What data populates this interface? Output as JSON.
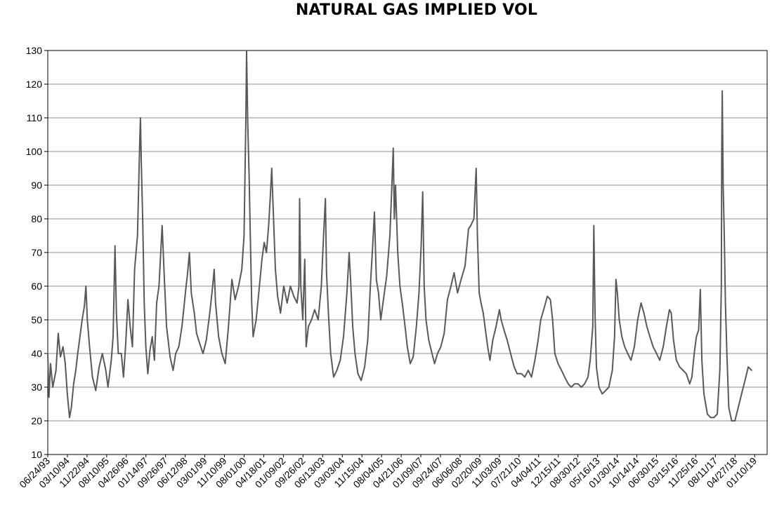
{
  "chart_data": {
    "type": "line",
    "title": "NATURAL GAS IMPLIED VOL",
    "xlabel": "",
    "ylabel": "",
    "ylim": [
      10,
      130
    ],
    "yticks": [
      10,
      20,
      30,
      40,
      50,
      60,
      70,
      80,
      90,
      100,
      110,
      120,
      130
    ],
    "xlim": [
      "1993-06-24",
      "2020-08-01"
    ],
    "x_tick_labels": [
      "06/24/93",
      "03/10/94",
      "11/22/94",
      "08/10/95",
      "04/26/96",
      "01/14/97",
      "09/26/97",
      "06/12/98",
      "03/01/99",
      "11/10/99",
      "08/01/00",
      "04/18/01",
      "01/09/02",
      "09/26/02",
      "06/13/03",
      "03/03/04",
      "11/15/04",
      "08/04/05",
      "04/21/06",
      "01/09/07",
      "09/24/07",
      "06/06/08",
      "02/20/09",
      "11/03/09",
      "07/21/10",
      "04/04/11",
      "12/15/11",
      "08/30/12",
      "05/16/13",
      "01/30/14",
      "10/14/14",
      "06/30/15",
      "03/15/16",
      "11/25/16",
      "08/11/17",
      "04/27/18",
      "01/10/19"
    ],
    "grid": "horizontal",
    "legend": "none",
    "line_color": "#595959",
    "series": [
      {
        "values": [
          [
            "1993-06-24",
            40
          ],
          [
            "1993-07-10",
            27
          ],
          [
            "1993-08-01",
            37
          ],
          [
            "1993-09-01",
            30
          ],
          [
            "1993-10-15",
            35
          ],
          [
            "1993-11-15",
            46
          ],
          [
            "1993-12-15",
            39
          ],
          [
            "1994-01-20",
            42
          ],
          [
            "1994-02-20",
            37
          ],
          [
            "1994-03-20",
            28
          ],
          [
            "1994-04-20",
            21
          ],
          [
            "1994-05-15",
            24
          ],
          [
            "1994-06-15",
            31
          ],
          [
            "1994-07-15",
            35
          ],
          [
            "1994-08-10",
            40
          ],
          [
            "1994-09-10",
            45
          ],
          [
            "1994-10-10",
            50
          ],
          [
            "1994-11-10",
            54
          ],
          [
            "1994-12-01",
            60
          ],
          [
            "1994-12-20",
            50
          ],
          [
            "1995-01-20",
            42
          ],
          [
            "1995-03-01",
            33
          ],
          [
            "1995-04-15",
            29
          ],
          [
            "1995-06-01",
            36
          ],
          [
            "1995-07-15",
            40
          ],
          [
            "1995-09-01",
            35
          ],
          [
            "1995-10-01",
            30
          ],
          [
            "1995-11-15",
            38
          ],
          [
            "1995-12-10",
            45
          ],
          [
            "1996-01-05",
            72
          ],
          [
            "1996-01-25",
            52
          ],
          [
            "1996-02-20",
            40
          ],
          [
            "1996-04-01",
            40
          ],
          [
            "1996-05-01",
            33
          ],
          [
            "1996-06-01",
            43
          ],
          [
            "1996-07-01",
            56
          ],
          [
            "1996-08-01",
            48
          ],
          [
            "1996-09-01",
            42
          ],
          [
            "1996-10-01",
            65
          ],
          [
            "1996-11-10",
            75
          ],
          [
            "1996-12-10",
            102
          ],
          [
            "1996-12-20",
            110
          ],
          [
            "1997-01-01",
            97
          ],
          [
            "1997-01-20",
            80
          ],
          [
            "1997-02-10",
            55
          ],
          [
            "1997-03-05",
            42
          ],
          [
            "1997-04-01",
            34
          ],
          [
            "1997-05-01",
            41
          ],
          [
            "1997-06-01",
            45
          ],
          [
            "1997-07-01",
            38
          ],
          [
            "1997-08-01",
            55
          ],
          [
            "1997-09-01",
            60
          ],
          [
            "1997-10-15",
            78
          ],
          [
            "1997-11-15",
            62
          ],
          [
            "1997-12-15",
            48
          ],
          [
            "1998-02-01",
            39
          ],
          [
            "1998-03-15",
            35
          ],
          [
            "1998-04-20",
            40
          ],
          [
            "1998-06-01",
            42
          ],
          [
            "1998-07-15",
            48
          ],
          [
            "1998-09-10",
            60
          ],
          [
            "1998-10-01",
            64
          ],
          [
            "1998-10-25",
            70
          ],
          [
            "1998-11-20",
            58
          ],
          [
            "1999-01-01",
            52
          ],
          [
            "1999-02-01",
            46
          ],
          [
            "1999-03-15",
            43
          ],
          [
            "1999-05-01",
            40
          ],
          [
            "1999-06-15",
            44
          ],
          [
            "1999-08-01",
            52
          ],
          [
            "1999-09-10",
            60
          ],
          [
            "1999-10-01",
            65
          ],
          [
            "1999-10-20",
            55
          ],
          [
            "1999-12-01",
            45
          ],
          [
            "2000-01-15",
            40
          ],
          [
            "2000-03-01",
            37
          ],
          [
            "2000-04-15",
            48
          ],
          [
            "2000-06-01",
            62
          ],
          [
            "2000-07-15",
            56
          ],
          [
            "2000-09-01",
            60
          ],
          [
            "2000-10-15",
            65
          ],
          [
            "2000-11-15",
            75
          ],
          [
            "2000-12-10",
            110
          ],
          [
            "2000-12-20",
            131
          ],
          [
            "2001-01-05",
            108
          ],
          [
            "2001-01-25",
            92
          ],
          [
            "2001-02-10",
            74
          ],
          [
            "2001-03-01",
            55
          ],
          [
            "2001-03-20",
            45
          ],
          [
            "2001-05-01",
            50
          ],
          [
            "2001-06-10",
            59
          ],
          [
            "2001-07-20",
            68
          ],
          [
            "2001-08-20",
            73
          ],
          [
            "2001-09-20",
            70
          ],
          [
            "2001-10-20",
            78
          ],
          [
            "2001-11-10",
            86
          ],
          [
            "2001-12-01",
            95
          ],
          [
            "2001-12-20",
            84
          ],
          [
            "2002-01-20",
            65
          ],
          [
            "2002-02-20",
            57
          ],
          [
            "2002-04-01",
            52
          ],
          [
            "2002-05-15",
            60
          ],
          [
            "2002-07-01",
            55
          ],
          [
            "2002-08-15",
            60
          ],
          [
            "2002-10-01",
            57
          ],
          [
            "2002-11-15",
            55
          ],
          [
            "2002-12-10",
            60
          ],
          [
            "2002-12-20",
            86
          ],
          [
            "2003-01-05",
            60
          ],
          [
            "2003-02-01",
            50
          ],
          [
            "2003-03-01",
            68
          ],
          [
            "2003-03-20",
            42
          ],
          [
            "2003-04-20",
            48
          ],
          [
            "2003-06-01",
            50
          ],
          [
            "2003-07-15",
            53
          ],
          [
            "2003-09-01",
            50
          ],
          [
            "2003-10-15",
            60
          ],
          [
            "2003-11-15",
            75
          ],
          [
            "2003-12-10",
            86
          ],
          [
            "2003-12-25",
            64
          ],
          [
            "2004-01-20",
            52
          ],
          [
            "2004-02-20",
            40
          ],
          [
            "2004-04-01",
            33
          ],
          [
            "2004-05-15",
            35
          ],
          [
            "2004-07-01",
            38
          ],
          [
            "2004-08-15",
            45
          ],
          [
            "2004-10-01",
            58
          ],
          [
            "2004-11-01",
            70
          ],
          [
            "2004-11-25",
            60
          ],
          [
            "2004-12-20",
            48
          ],
          [
            "2005-01-20",
            40
          ],
          [
            "2005-03-01",
            34
          ],
          [
            "2005-04-15",
            32
          ],
          [
            "2005-06-01",
            36
          ],
          [
            "2005-07-15",
            44
          ],
          [
            "2005-08-20",
            60
          ],
          [
            "2005-09-20",
            72
          ],
          [
            "2005-10-15",
            82
          ],
          [
            "2005-11-10",
            62
          ],
          [
            "2005-12-10",
            58
          ],
          [
            "2006-01-10",
            50
          ],
          [
            "2006-02-15",
            56
          ],
          [
            "2006-04-01",
            63
          ],
          [
            "2006-05-15",
            75
          ],
          [
            "2006-06-15",
            92
          ],
          [
            "2006-07-01",
            101
          ],
          [
            "2006-07-15",
            80
          ],
          [
            "2006-08-01",
            90
          ],
          [
            "2006-09-01",
            70
          ],
          [
            "2006-10-01",
            60
          ],
          [
            "2006-11-01",
            55
          ],
          [
            "2006-12-10",
            48
          ],
          [
            "2007-01-10",
            42
          ],
          [
            "2007-02-20",
            37
          ],
          [
            "2007-04-01",
            39
          ],
          [
            "2007-05-15",
            48
          ],
          [
            "2007-06-20",
            58
          ],
          [
            "2007-07-20",
            72
          ],
          [
            "2007-08-10",
            88
          ],
          [
            "2007-08-30",
            60
          ],
          [
            "2007-09-24",
            50
          ],
          [
            "2007-11-01",
            44
          ],
          [
            "2007-12-15",
            40
          ],
          [
            "2008-01-20",
            37
          ],
          [
            "2008-03-01",
            40
          ],
          [
            "2008-04-15",
            42
          ],
          [
            "2008-06-01",
            46
          ],
          [
            "2008-07-15",
            56
          ],
          [
            "2008-09-01",
            60
          ],
          [
            "2008-10-15",
            64
          ],
          [
            "2008-12-01",
            58
          ],
          [
            "2009-01-20",
            62
          ],
          [
            "2009-03-15",
            66
          ],
          [
            "2009-05-01",
            77
          ],
          [
            "2009-06-01",
            78
          ],
          [
            "2009-07-15",
            80
          ],
          [
            "2009-08-15",
            95
          ],
          [
            "2009-09-01",
            75
          ],
          [
            "2009-09-25",
            58
          ],
          [
            "2009-10-20",
            55
          ],
          [
            "2009-11-20",
            52
          ],
          [
            "2009-12-20",
            47
          ],
          [
            "2010-01-20",
            42
          ],
          [
            "2010-02-20",
            38
          ],
          [
            "2010-04-01",
            44
          ],
          [
            "2010-05-15",
            48
          ],
          [
            "2010-07-01",
            53
          ],
          [
            "2010-07-25",
            50
          ],
          [
            "2010-09-01",
            47
          ],
          [
            "2010-10-15",
            44
          ],
          [
            "2010-12-01",
            40
          ],
          [
            "2011-01-20",
            36
          ],
          [
            "2011-03-01",
            34
          ],
          [
            "2011-05-01",
            34
          ],
          [
            "2011-06-15",
            33
          ],
          [
            "2011-08-01",
            35
          ],
          [
            "2011-09-15",
            33
          ],
          [
            "2011-11-01",
            38
          ],
          [
            "2011-12-15",
            44
          ],
          [
            "2012-01-20",
            50
          ],
          [
            "2012-03-01",
            53
          ],
          [
            "2012-04-20",
            57
          ],
          [
            "2012-06-01",
            56
          ],
          [
            "2012-07-01",
            50
          ],
          [
            "2012-08-01",
            40
          ],
          [
            "2012-09-15",
            37
          ],
          [
            "2012-11-01",
            35
          ],
          [
            "2012-12-15",
            33
          ],
          [
            "2013-02-01",
            31
          ],
          [
            "2013-03-15",
            30
          ],
          [
            "2013-05-01",
            31
          ],
          [
            "2013-06-15",
            31
          ],
          [
            "2013-08-01",
            30
          ],
          [
            "2013-09-15",
            31
          ],
          [
            "2013-11-01",
            33
          ],
          [
            "2013-12-01",
            38
          ],
          [
            "2014-01-05",
            48
          ],
          [
            "2014-01-20",
            78
          ],
          [
            "2014-02-05",
            52
          ],
          [
            "2014-02-25",
            36
          ],
          [
            "2014-04-01",
            30
          ],
          [
            "2014-05-15",
            28
          ],
          [
            "2014-07-01",
            29
          ],
          [
            "2014-08-15",
            30
          ],
          [
            "2014-10-01",
            35
          ],
          [
            "2014-11-01",
            45
          ],
          [
            "2014-11-20",
            62
          ],
          [
            "2014-12-10",
            58
          ],
          [
            "2015-01-05",
            50
          ],
          [
            "2015-02-10",
            45
          ],
          [
            "2015-03-20",
            42
          ],
          [
            "2015-05-01",
            40
          ],
          [
            "2015-06-15",
            38
          ],
          [
            "2015-08-01",
            42
          ],
          [
            "2015-09-15",
            50
          ],
          [
            "2015-11-01",
            55
          ],
          [
            "2015-12-10",
            52
          ],
          [
            "2016-01-20",
            48
          ],
          [
            "2016-03-01",
            45
          ],
          [
            "2016-04-15",
            42
          ],
          [
            "2016-06-01",
            40
          ],
          [
            "2016-07-15",
            38
          ],
          [
            "2016-09-01",
            42
          ],
          [
            "2016-10-15",
            48
          ],
          [
            "2016-11-25",
            53
          ],
          [
            "2016-12-20",
            52
          ],
          [
            "2017-01-20",
            44
          ],
          [
            "2017-03-01",
            38
          ],
          [
            "2017-04-15",
            36
          ],
          [
            "2017-06-01",
            35
          ],
          [
            "2017-07-15",
            34
          ],
          [
            "2017-09-01",
            31
          ],
          [
            "2017-10-01",
            33
          ],
          [
            "2017-11-01",
            40
          ],
          [
            "2017-12-01",
            45
          ],
          [
            "2018-01-01",
            47
          ],
          [
            "2018-01-25",
            59
          ],
          [
            "2018-02-15",
            38
          ],
          [
            "2018-03-15",
            28
          ],
          [
            "2018-05-01",
            22
          ],
          [
            "2018-06-15",
            21
          ],
          [
            "2018-08-01",
            21
          ],
          [
            "2018-09-15",
            22
          ],
          [
            "2018-10-20",
            35
          ],
          [
            "2018-11-10",
            60
          ],
          [
            "2018-11-15",
            100
          ],
          [
            "2018-11-22",
            118
          ],
          [
            "2018-12-05",
            90
          ],
          [
            "2018-12-20",
            75
          ],
          [
            "2019-01-05",
            55
          ],
          [
            "2019-01-25",
            40
          ],
          [
            "2019-02-20",
            24
          ],
          [
            "2019-04-01",
            20
          ],
          [
            "2019-05-15",
            20
          ],
          [
            "2019-07-01",
            24
          ],
          [
            "2019-08-15",
            28
          ],
          [
            "2019-10-01",
            32
          ],
          [
            "2019-11-15",
            36
          ],
          [
            "2020-01-01",
            35
          ]
        ]
      }
    ]
  }
}
